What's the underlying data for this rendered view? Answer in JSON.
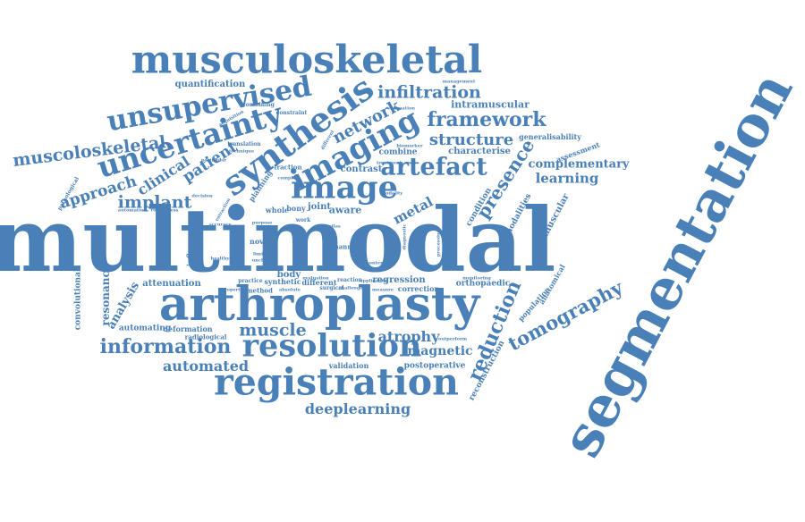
{
  "colors": {
    "text": "#4a80b8",
    "background": "#ffffff"
  },
  "words": [
    {
      "key": "multimodal",
      "text": "multimodal"
    },
    {
      "key": "segmentation",
      "text": "segmentation"
    },
    {
      "key": "arthroplasty",
      "text": "arthroplasty"
    },
    {
      "key": "musculoskeletal",
      "text": "musculoskeletal"
    },
    {
      "key": "registration",
      "text": "registration"
    },
    {
      "key": "resolution",
      "text": "resolution"
    },
    {
      "key": "synthesis",
      "text": "synthesis"
    },
    {
      "key": "uncertainty",
      "text": "uncertainty"
    },
    {
      "key": "unsupervised",
      "text": "unsupervised"
    },
    {
      "key": "imaging",
      "text": "imaging"
    },
    {
      "key": "image",
      "text": "image"
    },
    {
      "key": "artefact",
      "text": "artefact"
    },
    {
      "key": "framework",
      "text": "framework"
    },
    {
      "key": "infiltration",
      "text": "infiltration"
    },
    {
      "key": "tomography",
      "text": "tomography"
    },
    {
      "key": "information",
      "text": "information"
    },
    {
      "key": "muscoloskeletal",
      "text": "muscoloskeletal"
    },
    {
      "key": "structure",
      "text": "structure"
    },
    {
      "key": "network",
      "text": "network"
    },
    {
      "key": "presence",
      "text": "presence"
    },
    {
      "key": "reduction",
      "text": "reduction"
    },
    {
      "key": "deeplearning",
      "text": "deeplearning"
    },
    {
      "key": "automated",
      "text": "automated"
    },
    {
      "key": "muscle",
      "text": "muscle"
    },
    {
      "key": "atrophy",
      "text": "atrophy"
    },
    {
      "key": "magnetic",
      "text": "magnetic"
    },
    {
      "key": "implant",
      "text": "implant"
    },
    {
      "key": "approach",
      "text": "approach"
    },
    {
      "key": "clinical",
      "text": "clinical"
    },
    {
      "key": "patient",
      "text": "patient"
    },
    {
      "key": "complementary",
      "text": "complementary"
    },
    {
      "key": "learning",
      "text": "learning"
    },
    {
      "key": "metal",
      "text": "metal"
    },
    {
      "key": "intramuscular",
      "text": "intramuscular"
    },
    {
      "key": "quantification",
      "text": "quantification"
    },
    {
      "key": "contrast",
      "text": "contrast"
    },
    {
      "key": "combine",
      "text": "combine"
    },
    {
      "key": "characterise",
      "text": "characterise"
    },
    {
      "key": "generalisability",
      "text": "generalisability"
    },
    {
      "key": "assessment",
      "text": "assessment"
    },
    {
      "key": "muscular",
      "text": "muscular"
    },
    {
      "key": "modalities",
      "text": "modalities"
    },
    {
      "key": "condition",
      "text": "condition"
    },
    {
      "key": "anatomical",
      "text": "anatomical"
    },
    {
      "key": "population",
      "text": "population"
    },
    {
      "key": "orthopaedic",
      "text": "orthopaedic"
    },
    {
      "key": "regression",
      "text": "regression"
    },
    {
      "key": "correction",
      "text": "correction"
    },
    {
      "key": "reconstruction",
      "text": "reconstruction"
    },
    {
      "key": "postoperative",
      "text": "postoperative"
    },
    {
      "key": "validation",
      "text": "validation"
    },
    {
      "key": "attenuation",
      "text": "attenuation"
    },
    {
      "key": "analysis",
      "text": "analysis"
    },
    {
      "key": "resonance",
      "text": "resonance"
    },
    {
      "key": "convolutional",
      "text": "convolutional"
    },
    {
      "key": "automating",
      "text": "automating"
    },
    {
      "key": "deformation",
      "text": "deformation"
    },
    {
      "key": "radiological",
      "text": "radiological"
    },
    {
      "key": "inflammatory",
      "text": "inflammatory"
    },
    {
      "key": "body",
      "text": "body"
    },
    {
      "key": "joint",
      "text": "joint"
    },
    {
      "key": "aware",
      "text": "aware"
    },
    {
      "key": "bony",
      "text": "bony"
    },
    {
      "key": "whole",
      "text": "whole"
    },
    {
      "key": "synthetic",
      "text": "synthetic"
    },
    {
      "key": "different",
      "text": "different"
    },
    {
      "key": "novel",
      "text": "novel"
    },
    {
      "key": "surgical",
      "text": "surgical"
    },
    {
      "key": "reaction",
      "text": "reaction"
    },
    {
      "key": "practice",
      "text": "practice"
    },
    {
      "key": "method",
      "text": "method"
    },
    {
      "key": "planning",
      "text": "planning"
    },
    {
      "key": "fraction",
      "text": "fraction"
    },
    {
      "key": "combining",
      "text": "combining"
    },
    {
      "key": "constraint",
      "text": "constraint"
    },
    {
      "key": "pathological",
      "text": "pathological"
    },
    {
      "key": "automation",
      "text": "automation"
    },
    {
      "key": "robustness",
      "text": "robustness"
    },
    {
      "key": "decision",
      "text": "decision"
    },
    {
      "key": "translation",
      "text": "translation"
    },
    {
      "key": "management",
      "text": "management"
    },
    {
      "key": "estimation",
      "text": "estimation"
    },
    {
      "key": "biomarker",
      "text": "biomarker"
    },
    {
      "key": "treatment",
      "text": "treatment"
    },
    {
      "key": "channel",
      "text": "channel"
    },
    {
      "key": "atlas",
      "text": "atlas"
    },
    {
      "key": "monitoring",
      "text": "monitoring"
    },
    {
      "key": "application",
      "text": "application"
    },
    {
      "key": "evaluation",
      "text": "evaluation"
    },
    {
      "key": "challenge",
      "text": "challenge"
    },
    {
      "key": "measure",
      "text": "measure"
    },
    {
      "key": "outperform",
      "text": "outperform"
    },
    {
      "key": "processing",
      "text": "processing"
    },
    {
      "key": "diagnostic",
      "text": "diagnostic"
    },
    {
      "key": "accuracy",
      "text": "accuracy"
    },
    {
      "key": "limited",
      "text": "limited"
    },
    {
      "key": "uncharted",
      "text": "uncharted"
    },
    {
      "key": "healthy",
      "text": "healthy"
    },
    {
      "key": "properties",
      "text": "properties"
    },
    {
      "key": "particular",
      "text": "particular"
    },
    {
      "key": "extraction",
      "text": "extraction"
    },
    {
      "key": "complex",
      "text": "complex"
    },
    {
      "key": "purpose",
      "text": "purpose"
    },
    {
      "key": "work",
      "text": "work"
    },
    {
      "key": "different_small",
      "text": "different"
    },
    {
      "key": "technique",
      "text": "technique"
    },
    {
      "key": "acquisition",
      "text": "acquisition"
    },
    {
      "key": "modality",
      "text": "modality"
    },
    {
      "key": "context",
      "text": "context"
    },
    {
      "key": "absolute",
      "text": "absolute"
    }
  ]
}
